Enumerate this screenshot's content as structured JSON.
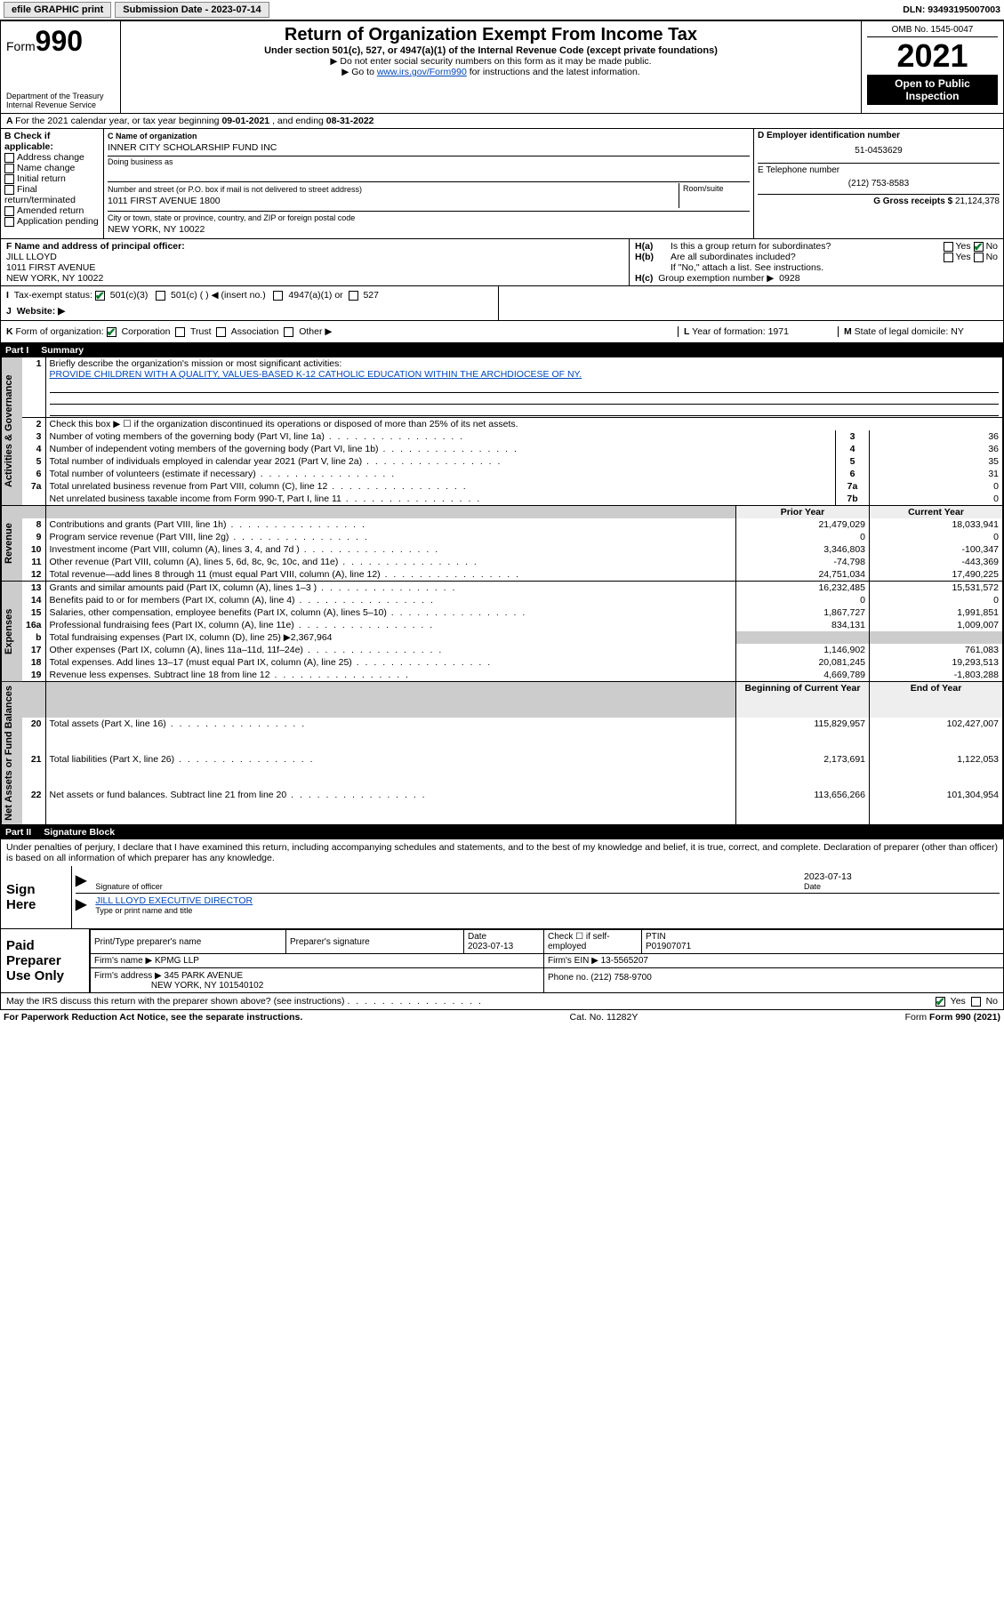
{
  "topbar": {
    "efile": "efile GRAPHIC print",
    "submission_label": "Submission Date - ",
    "submission_date": "2023-07-14",
    "dln_label": "DLN: ",
    "dln": "93493195007003"
  },
  "header": {
    "form_word": "Form",
    "form_num": "990",
    "dept": "Department of the Treasury",
    "irs": "Internal Revenue Service",
    "title": "Return of Organization Exempt From Income Tax",
    "subtitle": "Under section 501(c), 527, or 4947(a)(1) of the Internal Revenue Code (except private foundations)",
    "note1": "▶ Do not enter social security numbers on this form as it may be made public.",
    "note2_pre": "▶ Go to ",
    "note2_link": "www.irs.gov/Form990",
    "note2_post": " for instructions and the latest information.",
    "omb": "OMB No. 1545-0047",
    "year": "2021",
    "open": "Open to Public Inspection"
  },
  "A": {
    "text_pre": "For the 2021 calendar year, or tax year beginning ",
    "begin": "09-01-2021",
    "mid": " , and ending ",
    "end": "08-31-2022"
  },
  "B": {
    "label": "B Check if applicable:",
    "opts": [
      "Address change",
      "Name change",
      "Initial return",
      "Final return/terminated",
      "Amended return",
      "Application pending"
    ]
  },
  "C": {
    "name_label": "C Name of organization",
    "name": "INNER CITY SCHOLARSHIP FUND INC",
    "dba_label": "Doing business as",
    "street_label": "Number and street (or P.O. box if mail is not delivered to street address)",
    "room_label": "Room/suite",
    "street": "1011 FIRST AVENUE 1800",
    "city_label": "City or town, state or province, country, and ZIP or foreign postal code",
    "city": "NEW YORK, NY  10022"
  },
  "D": {
    "label": "D Employer identification number",
    "val": "51-0453629"
  },
  "E": {
    "label": "E Telephone number",
    "val": "(212) 753-8583"
  },
  "G": {
    "label": "G Gross receipts $",
    "val": "21,124,378"
  },
  "F": {
    "label": "F  Name and address of principal officer:",
    "name": "JILL LLOYD",
    "addr1": "1011 FIRST AVENUE",
    "addr2": "NEW YORK, NY  10022"
  },
  "H": {
    "a": "Is this a group return for subordinates?",
    "b": "Are all subordinates included?",
    "note": "If \"No,\" attach a list. See instructions.",
    "c_label": "Group exemption number ▶",
    "c_val": "0928",
    "yes": "Yes",
    "no": "No"
  },
  "I": {
    "label": "Tax-exempt status:",
    "o1": "501(c)(3)",
    "o2": "501(c) (   ) ◀ (insert no.)",
    "o3": "4947(a)(1) or",
    "o4": "527"
  },
  "J": {
    "label": "Website: ▶"
  },
  "K": {
    "label": "Form of organization:",
    "o1": "Corporation",
    "o2": "Trust",
    "o3": "Association",
    "o4": "Other ▶"
  },
  "L": {
    "label": "Year of formation:",
    "val": "1971"
  },
  "M": {
    "label": "State of legal domicile:",
    "val": "NY"
  },
  "partI": {
    "hdr": "Part I",
    "title": "Summary"
  },
  "sec1": {
    "l1": "Briefly describe the organization's mission or most significant activities:",
    "mission": "PROVIDE CHILDREN WITH A QUALITY, VALUES-BASED K-12 CATHOLIC EDUCATION WITHIN THE ARCHDIOCESE OF NY.",
    "l2": "Check this box ▶ ☐  if the organization discontinued its operations or disposed of more than 25% of its net assets.",
    "rows": [
      {
        "n": "3",
        "t": "Number of voting members of the governing body (Part VI, line 1a)",
        "box": "3",
        "v": "36"
      },
      {
        "n": "4",
        "t": "Number of independent voting members of the governing body (Part VI, line 1b)",
        "box": "4",
        "v": "36"
      },
      {
        "n": "5",
        "t": "Total number of individuals employed in calendar year 2021 (Part V, line 2a)",
        "box": "5",
        "v": "35"
      },
      {
        "n": "6",
        "t": "Total number of volunteers (estimate if necessary)",
        "box": "6",
        "v": "31"
      },
      {
        "n": "7a",
        "t": "Total unrelated business revenue from Part VIII, column (C), line 12",
        "box": "7a",
        "v": "0"
      },
      {
        "n": "",
        "t": "Net unrelated business taxable income from Form 990-T, Part I, line 11",
        "box": "7b",
        "v": "0"
      }
    ],
    "strip": "Activities & Governance"
  },
  "rev": {
    "strip": "Revenue",
    "hdr_prior": "Prior Year",
    "hdr_curr": "Current Year",
    "rows": [
      {
        "n": "8",
        "t": "Contributions and grants (Part VIII, line 1h)",
        "p": "21,479,029",
        "c": "18,033,941"
      },
      {
        "n": "9",
        "t": "Program service revenue (Part VIII, line 2g)",
        "p": "0",
        "c": "0"
      },
      {
        "n": "10",
        "t": "Investment income (Part VIII, column (A), lines 3, 4, and 7d )",
        "p": "3,346,803",
        "c": "-100,347"
      },
      {
        "n": "11",
        "t": "Other revenue (Part VIII, column (A), lines 5, 6d, 8c, 9c, 10c, and 11e)",
        "p": "-74,798",
        "c": "-443,369"
      },
      {
        "n": "12",
        "t": "Total revenue—add lines 8 through 11 (must equal Part VIII, column (A), line 12)",
        "p": "24,751,034",
        "c": "17,490,225"
      }
    ]
  },
  "exp": {
    "strip": "Expenses",
    "rows": [
      {
        "n": "13",
        "t": "Grants and similar amounts paid (Part IX, column (A), lines 1–3 )",
        "p": "16,232,485",
        "c": "15,531,572"
      },
      {
        "n": "14",
        "t": "Benefits paid to or for members (Part IX, column (A), line 4)",
        "p": "0",
        "c": "0"
      },
      {
        "n": "15",
        "t": "Salaries, other compensation, employee benefits (Part IX, column (A), lines 5–10)",
        "p": "1,867,727",
        "c": "1,991,851"
      },
      {
        "n": "16a",
        "t": "Professional fundraising fees (Part IX, column (A), line 11e)",
        "p": "834,131",
        "c": "1,009,007"
      }
    ],
    "row_b": {
      "n": "b",
      "t": "Total fundraising expenses (Part IX, column (D), line 25) ▶",
      "amt": "2,367,964"
    },
    "rows2": [
      {
        "n": "17",
        "t": "Other expenses (Part IX, column (A), lines 11a–11d, 11f–24e)",
        "p": "1,146,902",
        "c": "761,083"
      },
      {
        "n": "18",
        "t": "Total expenses. Add lines 13–17 (must equal Part IX, column (A), line 25)",
        "p": "20,081,245",
        "c": "19,293,513"
      },
      {
        "n": "19",
        "t": "Revenue less expenses. Subtract line 18 from line 12",
        "p": "4,669,789",
        "c": "-1,803,288"
      }
    ]
  },
  "net": {
    "strip": "Net Assets or Fund Balances",
    "hdr_beg": "Beginning of Current Year",
    "hdr_end": "End of Year",
    "rows": [
      {
        "n": "20",
        "t": "Total assets (Part X, line 16)",
        "p": "115,829,957",
        "c": "102,427,007"
      },
      {
        "n": "21",
        "t": "Total liabilities (Part X, line 26)",
        "p": "2,173,691",
        "c": "1,122,053"
      },
      {
        "n": "22",
        "t": "Net assets or fund balances. Subtract line 21 from line 20",
        "p": "113,656,266",
        "c": "101,304,954"
      }
    ]
  },
  "partII": {
    "hdr": "Part II",
    "title": "Signature Block"
  },
  "sig": {
    "decl": "Under penalties of perjury, I declare that I have examined this return, including accompanying schedules and statements, and to the best of my knowledge and belief, it is true, correct, and complete. Declaration of preparer (other than officer) is based on all information of which preparer has any knowledge.",
    "sign_here": "Sign Here",
    "sig_officer": "Signature of officer",
    "date": "Date",
    "sig_date": "2023-07-13",
    "name_title": "JILL LLOYD  EXECUTIVE DIRECTOR",
    "type_name": "Type or print name and title"
  },
  "prep": {
    "label": "Paid Preparer Use Only",
    "h1": "Print/Type preparer's name",
    "h2": "Preparer's signature",
    "h3": "Date",
    "h3v": "2023-07-13",
    "h4": "Check ☐ if self-employed",
    "h5": "PTIN",
    "h5v": "P01907071",
    "firm_name_l": "Firm's name    ▶",
    "firm_name": "KPMG LLP",
    "firm_ein_l": "Firm's EIN ▶",
    "firm_ein": "13-5565207",
    "firm_addr_l": "Firm's address ▶",
    "firm_addr1": "345 PARK AVENUE",
    "firm_addr2": "NEW YORK, NY  101540102",
    "phone_l": "Phone no.",
    "phone": "(212) 758-9700"
  },
  "bottom": {
    "q": "May the IRS discuss this return with the preparer shown above? (see instructions)",
    "yes": "Yes",
    "no": "No",
    "pra": "For Paperwork Reduction Act Notice, see the separate instructions.",
    "cat": "Cat. No. 11282Y",
    "form": "Form 990 (2021)"
  },
  "colors": {
    "link": "#0047bb",
    "check": "#0a7a2f",
    "shade": "#cccccc"
  }
}
